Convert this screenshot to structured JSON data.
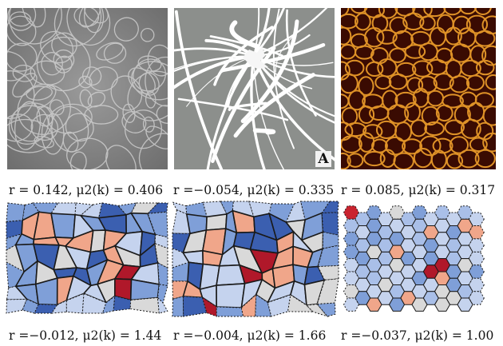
{
  "panels": {
    "top": [
      {
        "name": "grayscale-fiber-network-photo",
        "caption": "r = 0.142, μ2(k) = 0.406"
      },
      {
        "name": "white-filament-network-photo",
        "caption": "r =−0.054, μ2(k) = 0.335",
        "letter": "A"
      },
      {
        "name": "orange-cellular-network-photo",
        "caption": "r = 0.085, μ2(k) = 0.317"
      }
    ],
    "bottom": [
      {
        "name": "irregular-tessellation-left",
        "caption": "r =−0.012, μ2(k) = 1.44"
      },
      {
        "name": "irregular-tessellation-middle",
        "caption": "r =−0.004, μ2(k) = 1.66"
      },
      {
        "name": "hexagonal-tessellation-right",
        "caption": "r =−0.037, μ2(k) = 1.00"
      }
    ]
  },
  "colors": {
    "blue_dark": "#3b5fb0",
    "blue_mid": "#7f9fd8",
    "blue_light": "#c5d3ee",
    "gray": "#d9d9d9",
    "salmon": "#f0a68a",
    "red_dark": "#b0182a"
  }
}
